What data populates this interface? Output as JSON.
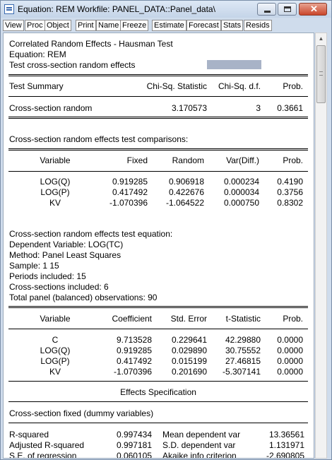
{
  "window": {
    "title": "Equation: REM   Workfile: PANEL_DATA::Panel_data\\"
  },
  "toolbar": [
    "View",
    "Proc",
    "Object",
    "Print",
    "Name",
    "Freeze",
    "Estimate",
    "Forecast",
    "Stats",
    "Resids"
  ],
  "header": {
    "line1": "Correlated Random Effects - Hausman Test",
    "line2": "Equation: REM",
    "line3": "Test cross-section random effects"
  },
  "summary": {
    "cols": [
      "Test Summary",
      "Chi-Sq. Statistic",
      "Chi-Sq. d.f.",
      "Prob."
    ],
    "row": [
      "Cross-section random",
      "3.170573",
      "3",
      "0.3661"
    ]
  },
  "comparisons": {
    "title": "Cross-section random effects test comparisons:",
    "cols": [
      "Variable",
      "Fixed",
      "Random",
      "Var(Diff.)",
      "Prob."
    ],
    "rows": [
      [
        "LOG(Q)",
        "0.919285",
        "0.906918",
        "0.000234",
        "0.4190"
      ],
      [
        "LOG(P)",
        "0.417492",
        "0.422676",
        "0.000034",
        "0.3756"
      ],
      [
        "KV",
        "-1.070396",
        "-1.064522",
        "0.000750",
        "0.8302"
      ]
    ]
  },
  "equation": {
    "title": "Cross-section random effects test equation:",
    "dep": "Dependent Variable: LOG(TC)",
    "method": "Method: Panel Least Squares",
    "sample": "Sample: 1 15",
    "periods": "Periods included: 15",
    "sections": "Cross-sections included: 6",
    "obs": "Total panel (balanced) observations: 90"
  },
  "coefs": {
    "cols": [
      "Variable",
      "Coefficient",
      "Std. Error",
      "t-Statistic",
      "Prob."
    ],
    "rows": [
      [
        "C",
        "9.713528",
        "0.229641",
        "42.29880",
        "0.0000"
      ],
      [
        "LOG(Q)",
        "0.919285",
        "0.029890",
        "30.75552",
        "0.0000"
      ],
      [
        "LOG(P)",
        "0.417492",
        "0.015199",
        "27.46815",
        "0.0000"
      ],
      [
        "KV",
        "-1.070396",
        "0.201690",
        "-5.307141",
        "0.0000"
      ]
    ]
  },
  "effects": {
    "title": "Effects Specification",
    "spec": "Cross-section fixed (dummy variables)"
  },
  "stats": [
    [
      "R-squared",
      "0.997434",
      "Mean dependent var",
      "13.36561"
    ],
    [
      "Adjusted R-squared",
      "0.997181",
      "S.D. dependent var",
      "1.131971"
    ],
    [
      "S.E. of regression",
      "0.060105",
      "Akaike info criterion",
      "-2.690805"
    ]
  ]
}
